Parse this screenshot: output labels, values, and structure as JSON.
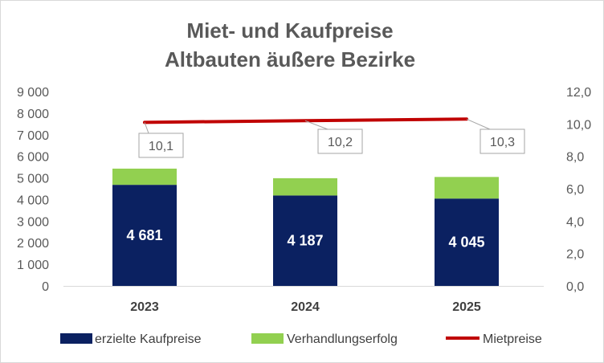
{
  "chart_data": {
    "type": "bar",
    "title": "Miet- und Kaufpreise",
    "subtitle": "Altbauten äußere Bezirke",
    "categories": [
      "2023",
      "2024",
      "2025"
    ],
    "series": [
      {
        "name": "erzielte Kaufpreise",
        "type": "bar",
        "axis": "left",
        "color": "#0b2161",
        "values": [
          4681,
          4187,
          4045
        ],
        "value_labels": [
          "4 681",
          "4 187",
          "4 045"
        ]
      },
      {
        "name": "Verhandlungserfolg",
        "type": "bar",
        "stacked": true,
        "axis": "left",
        "color": "#92d050",
        "values": [
          750,
          800,
          1000
        ]
      },
      {
        "name": "Mietpreise",
        "type": "line",
        "axis": "right",
        "color": "#c00000",
        "values": [
          10.1,
          10.2,
          10.3
        ],
        "value_labels": [
          "10,1",
          "10,2",
          "10,3"
        ]
      }
    ],
    "y_left": {
      "min": 0,
      "max": 9000,
      "step": 1000,
      "tick_labels": [
        "0",
        "1 000",
        "2 000",
        "3 000",
        "4 000",
        "5 000",
        "6 000",
        "7 000",
        "8 000",
        "9 000"
      ]
    },
    "y_right": {
      "min": 0,
      "max": 12,
      "step": 2,
      "tick_labels": [
        "0,0",
        "2,0",
        "4,0",
        "6,0",
        "8,0",
        "10,0",
        "12,0"
      ]
    },
    "grid": false,
    "legend_position": "bottom"
  }
}
